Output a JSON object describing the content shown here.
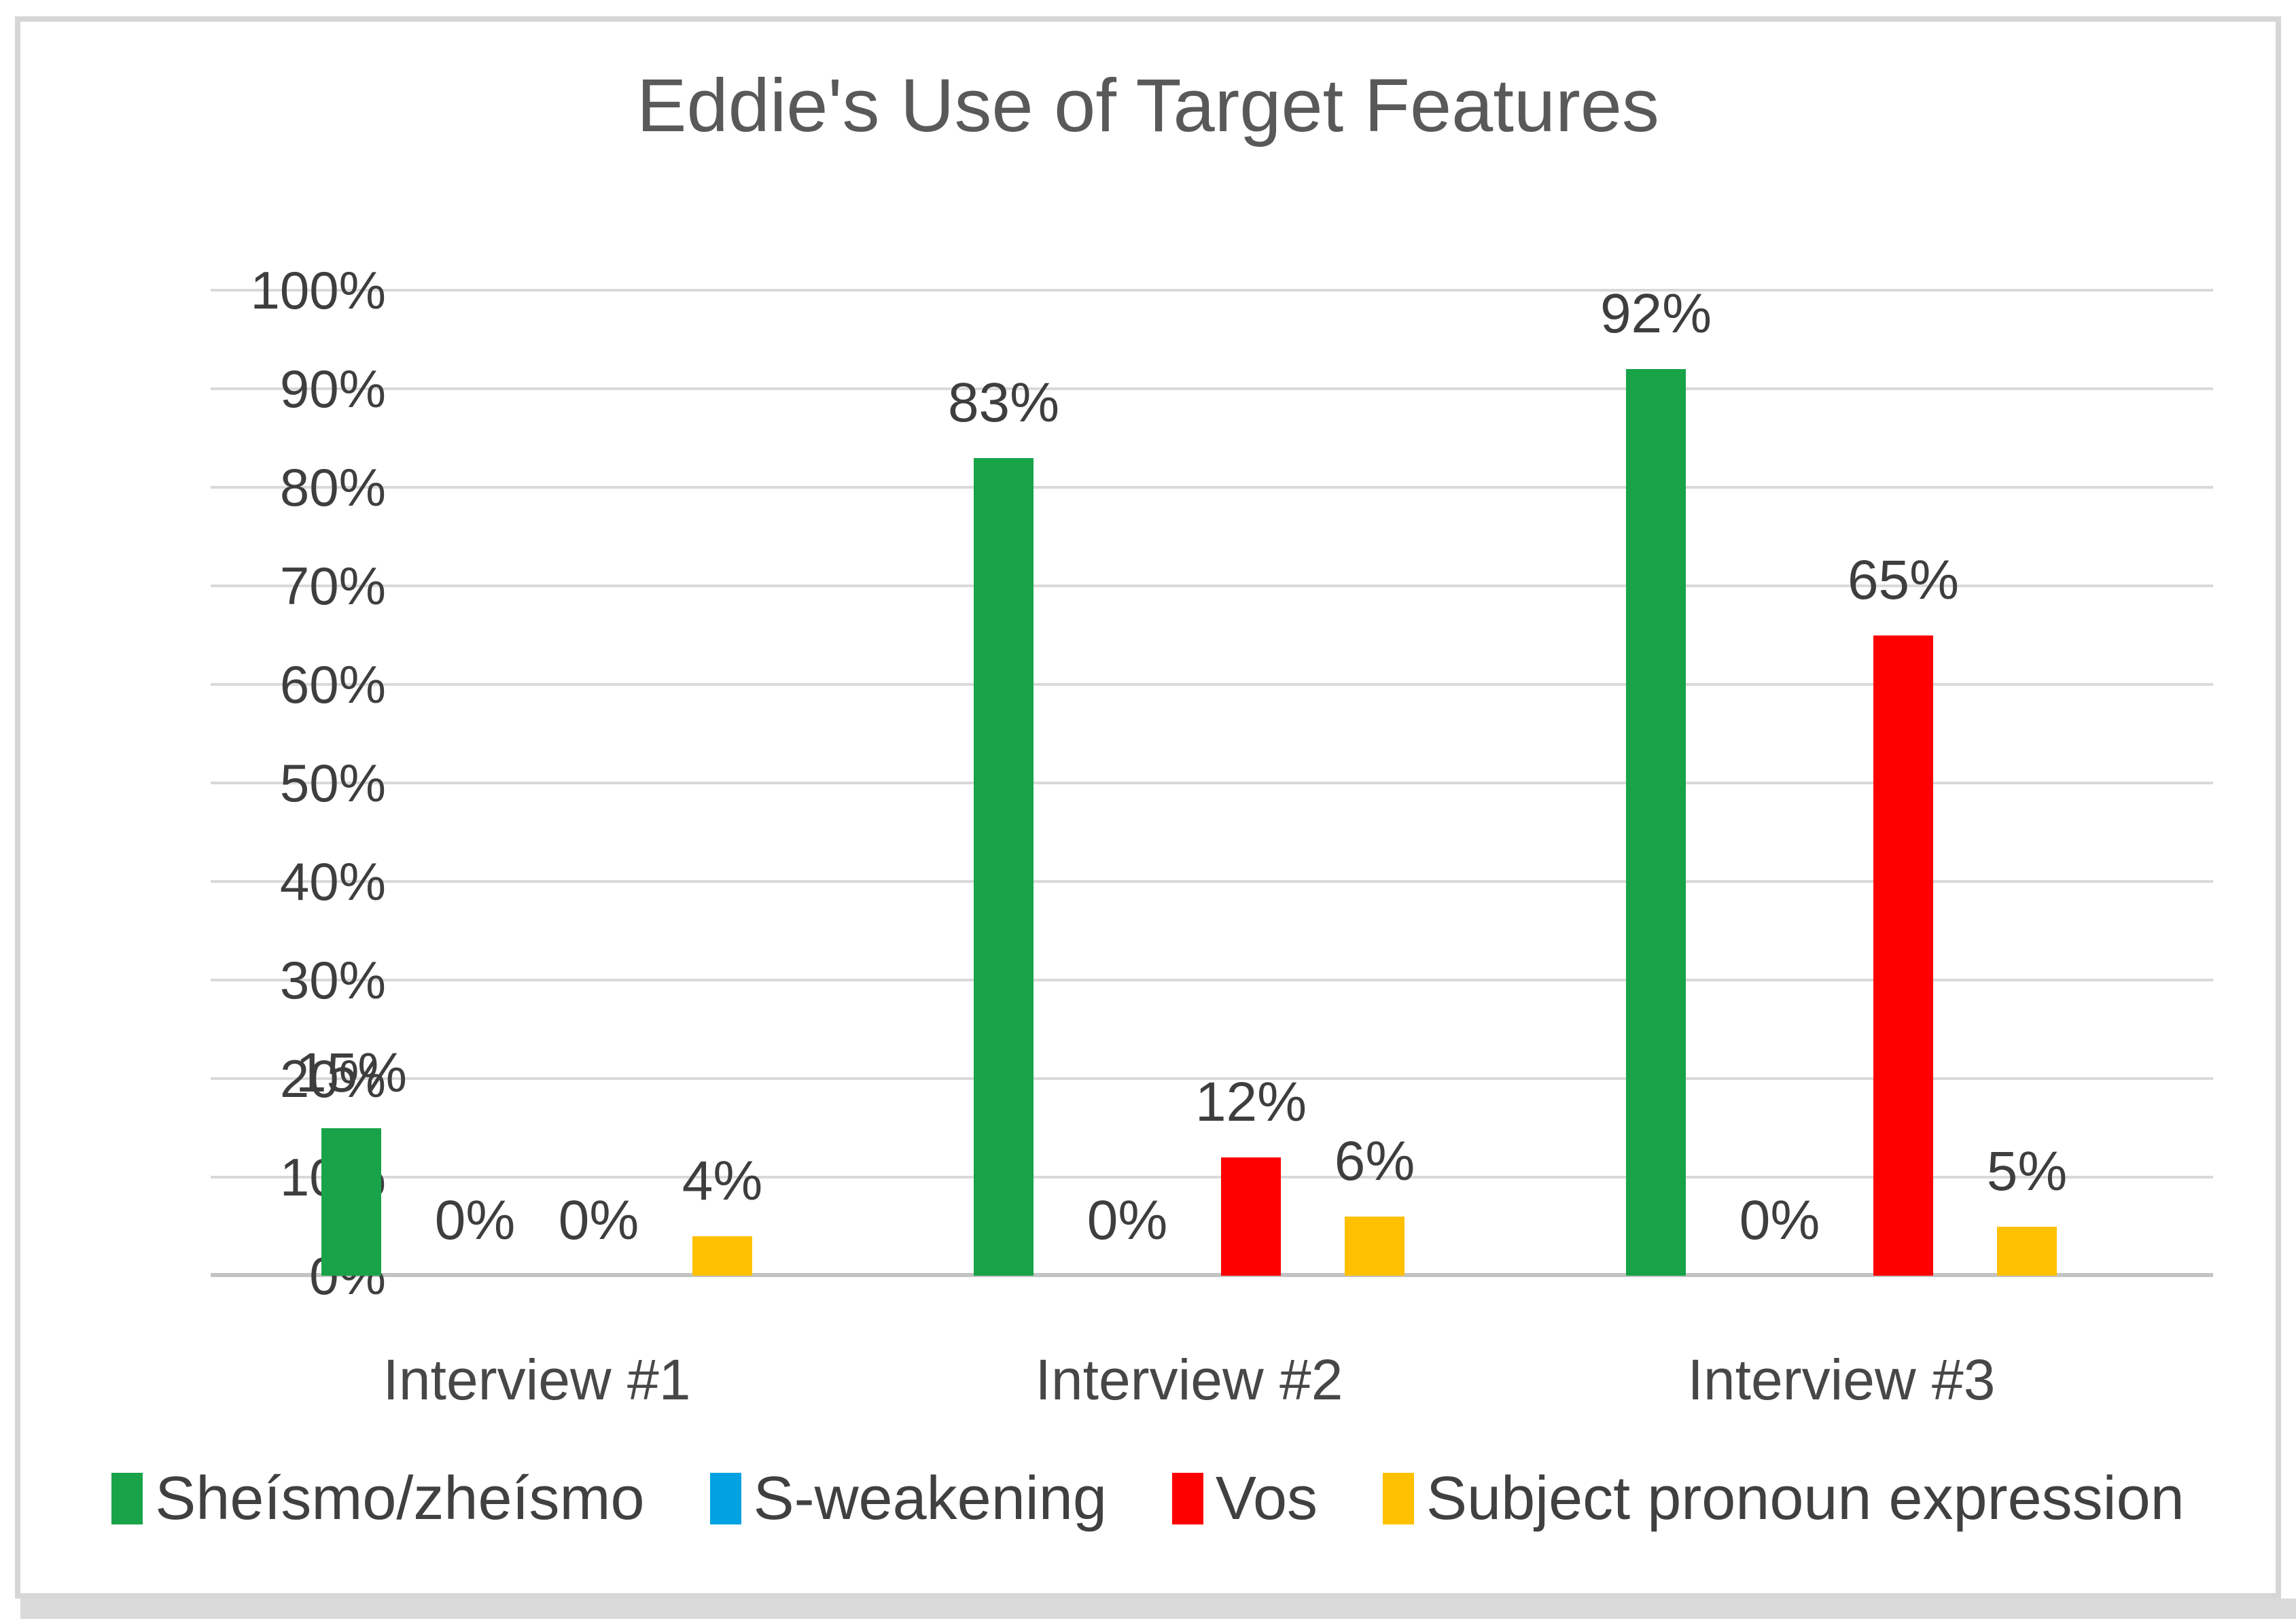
{
  "chart_data": {
    "type": "bar",
    "title": "Eddie's Use of Target Features",
    "categories": [
      "Interview #1",
      "Interview #2",
      "Interview #3"
    ],
    "series": [
      {
        "name": "Sheísmo/zheísmo",
        "color": "#18a349",
        "values": [
          15,
          83,
          92
        ]
      },
      {
        "name": "S-weakening",
        "color": "#00a2e1",
        "values": [
          0,
          0,
          0
        ]
      },
      {
        "name": "Vos",
        "color": "#ff0000",
        "values": [
          0,
          12,
          65
        ]
      },
      {
        "name": "Subject pronoun expression",
        "color": "#ffc000",
        "values": [
          4,
          6,
          5
        ]
      }
    ],
    "data_labels": true,
    "label_suffix": "%",
    "ylim": [
      0,
      100
    ],
    "yticks": [
      100,
      90,
      80,
      70,
      60,
      50,
      40,
      30,
      20,
      10,
      0
    ],
    "tick_suffix": "%",
    "grid": true,
    "legend_position": "bottom"
  },
  "styles": {
    "title_color": "#595959",
    "tick_label_color": "#3e3e3e",
    "data_label_color": "#3e3e3e",
    "category_label_color": "#474747",
    "legend_text_color": "#404040",
    "gridline_color": "#d9d9d9",
    "axis_line_color": "#c3c3c3",
    "frame_border_color": "#d6d6d6",
    "bottom_strip_color": "#dadada",
    "background": "#ffffff"
  }
}
